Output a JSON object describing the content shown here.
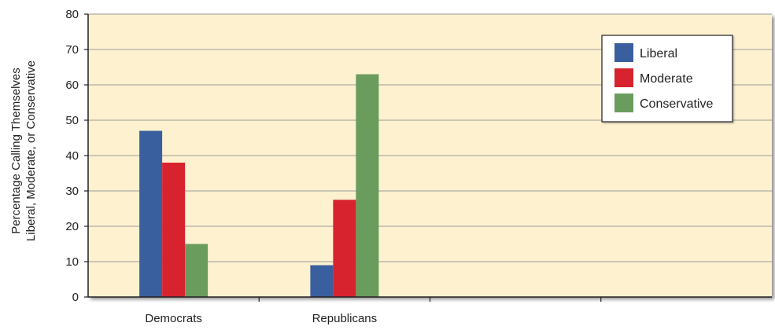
{
  "chart_data": {
    "type": "bar",
    "categories": [
      "Democrats",
      "Republicans",
      "",
      ""
    ],
    "series": [
      {
        "name": "Liberal",
        "color": "#3a5f9e",
        "values": [
          47,
          9,
          null,
          null
        ]
      },
      {
        "name": "Moderate",
        "color": "#d7232e",
        "values": [
          38,
          27.5,
          null,
          null
        ]
      },
      {
        "name": "Conservative",
        "color": "#6a9c5e",
        "values": [
          15,
          63,
          null,
          null
        ]
      }
    ],
    "ylabel_line1": "Percentage Calling Themselves",
    "ylabel_line2": "Liberal, Moderate, or Conservative",
    "xlabel": "",
    "ylim": [
      0,
      80
    ],
    "yticks": [
      0,
      10,
      20,
      30,
      40,
      50,
      60,
      70,
      80
    ],
    "grid": true,
    "legend_position": "top-right",
    "plot_background": "#fdf1cf",
    "grid_color": "#9a9a9a"
  }
}
